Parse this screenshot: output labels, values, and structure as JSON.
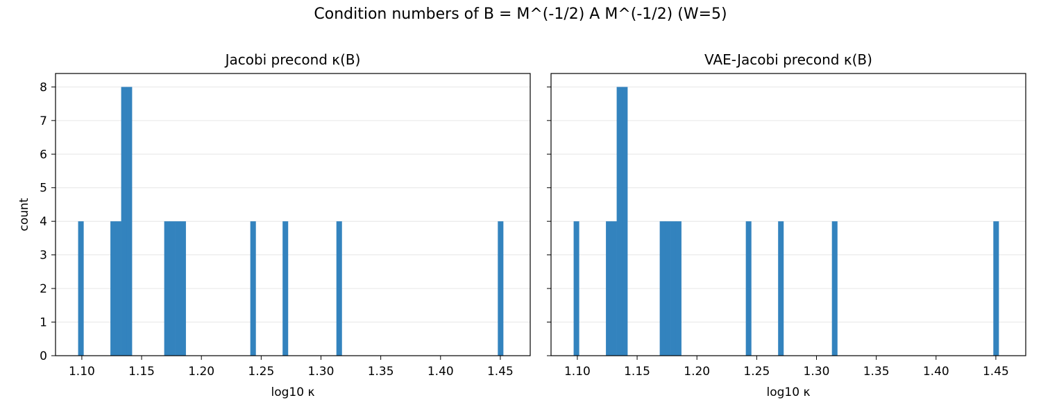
{
  "figure": {
    "suptitle": "Condition numbers of B = M^(-1/2) A M^(-1/2) (W=5)"
  },
  "chart_data": [
    {
      "type": "bar",
      "title": "Jacobi precond κ(B)",
      "xlabel": "log10 κ",
      "ylabel": "count",
      "xlim": [
        1.078,
        1.475
      ],
      "ylim": [
        0,
        8.4
      ],
      "xticks": [
        "1.10",
        "1.15",
        "1.20",
        "1.25",
        "1.30",
        "1.35",
        "1.40",
        "1.45"
      ],
      "yticks": [
        "0",
        "1",
        "2",
        "3",
        "4",
        "5",
        "6",
        "7",
        "8"
      ],
      "grid": "y",
      "color": "#3383be",
      "bin_width": 0.0045,
      "bins": [
        {
          "x0": 1.0969,
          "count": 4
        },
        {
          "x0": 1.1239,
          "count": 4
        },
        {
          "x0": 1.1284,
          "count": 4
        },
        {
          "x0": 1.1329,
          "count": 8
        },
        {
          "x0": 1.1374,
          "count": 8
        },
        {
          "x0": 1.1689,
          "count": 4
        },
        {
          "x0": 1.1734,
          "count": 4
        },
        {
          "x0": 1.1779,
          "count": 4
        },
        {
          "x0": 1.1824,
          "count": 4
        },
        {
          "x0": 1.2409,
          "count": 4
        },
        {
          "x0": 1.2679,
          "count": 4
        },
        {
          "x0": 1.3129,
          "count": 4
        },
        {
          "x0": 1.4479,
          "count": 4
        }
      ]
    },
    {
      "type": "bar",
      "title": "VAE-Jacobi precond κ(B)",
      "xlabel": "log10 κ",
      "ylabel": "",
      "xlim": [
        1.078,
        1.475
      ],
      "ylim": [
        0,
        8.4
      ],
      "xticks": [
        "1.10",
        "1.15",
        "1.20",
        "1.25",
        "1.30",
        "1.35",
        "1.40",
        "1.45"
      ],
      "yticks": [],
      "grid": "y",
      "color": "#3383be",
      "bin_width": 0.0045,
      "bins": [
        {
          "x0": 1.0969,
          "count": 4
        },
        {
          "x0": 1.1239,
          "count": 4
        },
        {
          "x0": 1.1284,
          "count": 4
        },
        {
          "x0": 1.1329,
          "count": 8
        },
        {
          "x0": 1.1374,
          "count": 8
        },
        {
          "x0": 1.1689,
          "count": 4
        },
        {
          "x0": 1.1734,
          "count": 4
        },
        {
          "x0": 1.1779,
          "count": 4
        },
        {
          "x0": 1.1824,
          "count": 4
        },
        {
          "x0": 1.2409,
          "count": 4
        },
        {
          "x0": 1.2679,
          "count": 4
        },
        {
          "x0": 1.3129,
          "count": 4
        },
        {
          "x0": 1.4479,
          "count": 4
        }
      ]
    }
  ]
}
